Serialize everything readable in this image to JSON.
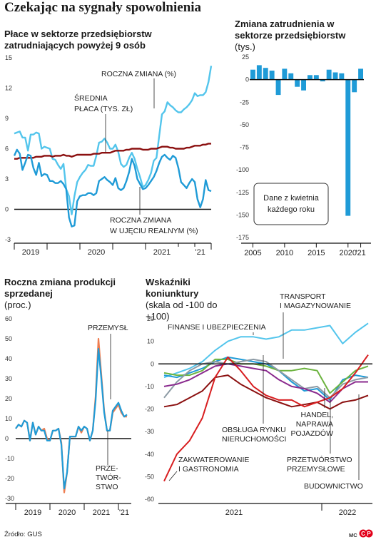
{
  "title": "Czekając na sygnały spowolnienia",
  "source": "Źródło: GUS",
  "credit": "MC",
  "colors": {
    "primary": "#1f9bd7",
    "light": "#53c5ec",
    "dark_red": "#8b1010",
    "red": "#d81e20",
    "green": "#6cb33f",
    "purple": "#8a2a8e",
    "gray": "#8d9ba5",
    "orange": "#ef7d50",
    "navy": "#1d4a7a"
  },
  "chart_data": [
    {
      "id": "wages",
      "type": "line",
      "title": "Płace w sektorze przedsiębiorstw zatrudniających powyżej 9 osób",
      "ylim": [
        -3,
        15
      ],
      "y_ticks": [
        -3,
        0,
        3,
        6,
        9,
        12,
        15
      ],
      "x_labels": [
        "2019",
        "2020",
        "2021",
        "'21"
      ],
      "annotations": [
        "ROCZNA ZMIANA (%)",
        "ŚREDNIA PŁACA (TYS. ZŁ)",
        "ROCZNA ZMIANA W UJĘCIU REALNYM (%)"
      ],
      "series": [
        {
          "name": "ROCZNA ZMIANA (%)",
          "color": "#53c5ec",
          "values": [
            7.5,
            7.6,
            7.7,
            7.1,
            7.1,
            5.8,
            7.4,
            7.4,
            7.6,
            7.5,
            6.0,
            6.2,
            6.1,
            6.0,
            5.0,
            4.9,
            4.4,
            4.0,
            4.5,
            2.0,
            1.3,
            -0.5,
            1.3,
            2.7,
            3.2,
            3.6,
            3.9,
            4.4,
            4.3,
            4.3,
            5.3,
            6.6,
            6.7,
            7.0,
            6.6,
            6.0,
            6.0,
            6.4,
            5.7,
            4.5,
            4.2,
            4.4,
            5.1,
            5.6,
            5.0,
            4.0,
            3.2,
            2.2,
            2.4,
            2.9,
            3.6,
            4.8,
            5.1,
            7.3,
            9.4,
            9.7,
            10.6,
            10.3,
            10.1,
            9.8,
            9.6,
            9.6,
            9.9,
            10.1,
            10.4,
            10.8,
            11.5,
            11.2,
            11.3,
            11.3,
            11.6,
            12.6,
            14.2
          ]
        },
        {
          "name": "ŚREDNIA PŁACA (TYS. ZŁ)",
          "color": "#8b1010",
          "values": [
            5.0,
            5.0,
            5.1,
            5.1,
            5.1,
            5.1,
            5.1,
            5.1,
            5.2,
            5.2,
            5.2,
            5.3,
            5.3,
            5.3,
            5.2,
            5.3,
            5.3,
            5.3,
            5.4,
            5.3,
            5.3,
            5.2,
            5.3,
            5.4,
            5.4,
            5.4,
            5.4,
            5.4,
            5.4,
            5.5,
            5.5,
            5.5,
            5.6,
            5.6,
            5.6,
            5.6,
            5.7,
            5.8,
            5.8,
            5.8,
            5.8,
            5.9,
            5.9,
            6.0,
            6.0,
            6.0,
            6.0,
            5.9,
            5.9,
            5.9,
            6.0,
            6.0,
            6.0,
            6.1,
            6.2,
            6.2,
            6.2,
            6.1,
            6.1,
            6.0,
            6.0,
            6.0,
            6.0,
            6.1,
            6.1,
            6.2,
            6.3,
            6.3,
            6.3,
            6.4,
            6.4,
            6.5,
            6.5
          ]
        },
        {
          "name": "ROCZNA ZMIANA W UJĘCIU REALNYM (%)",
          "color": "#1f9bd7",
          "values": [
            5.3,
            5.9,
            5.5,
            3.9,
            4.6,
            5.4,
            5.3,
            4.1,
            3.4,
            4.6,
            3.3,
            3.5,
            3.4,
            2.8,
            2.8,
            2.6,
            2.6,
            2.8,
            2.5,
            2.0,
            -0.8,
            -1.7,
            -1.6,
            0.8,
            1.3,
            1.4,
            1.4,
            1.6,
            1.6,
            1.4,
            1.6,
            2.8,
            3.0,
            3.2,
            2.9,
            2.7,
            2.4,
            3.1,
            2.1,
            1.9,
            2.1,
            2.8,
            3.7,
            5.0,
            4.3,
            3.0,
            2.5,
            2.0,
            2.1,
            2.4,
            2.8,
            3.2,
            3.8,
            4.6,
            5.2,
            5.4,
            5.1,
            4.9,
            5.3,
            5.1,
            4.1,
            2.7,
            2.4,
            2.1,
            2.6,
            3.0,
            2.7,
            1.0,
            0.2,
            1.0,
            2.9,
            1.9,
            1.8
          ]
        }
      ]
    },
    {
      "id": "employment",
      "type": "bar",
      "title": "Zmiana zatrudnienia w sektorze przedsiębiorstw",
      "subtitle": "(tys.)",
      "ylim": [
        -175,
        25
      ],
      "y_ticks": [
        25,
        0,
        -25,
        -50,
        -75,
        -100,
        -125,
        -150,
        -175
      ],
      "x_labels": [
        "2005",
        "2010",
        "2015",
        "2020",
        "'21"
      ],
      "note": "Dane z kwietnia każdego roku",
      "categories": [
        2005,
        2006,
        2007,
        2008,
        2009,
        2010,
        2011,
        2012,
        2013,
        2014,
        2015,
        2016,
        2017,
        2018,
        2019,
        2020,
        2021,
        2022
      ],
      "values": [
        11,
        16,
        13,
        10,
        -17,
        12,
        7,
        -8,
        -12,
        5,
        5,
        -2,
        11,
        8,
        7,
        -151,
        -14,
        12
      ]
    },
    {
      "id": "production",
      "type": "line",
      "title": "Roczna zmiana produkcji sprzedanej",
      "subtitle": "(proc.)",
      "ylim": [
        -30,
        60
      ],
      "y_ticks": [
        60,
        50,
        40,
        30,
        20,
        10,
        0,
        -10,
        -20,
        -30
      ],
      "x_labels": [
        "2019",
        "2020",
        "2021",
        "'21"
      ],
      "annotations": [
        "PRZEMYSŁ",
        "PRZE-",
        "TWÓR-",
        "STWO"
      ],
      "series": [
        {
          "name": "PRZEMYSŁ",
          "color": "#1f9bd7",
          "values": [
            5,
            7,
            6,
            9,
            8,
            -1,
            8,
            2,
            6,
            4,
            4,
            -1,
            -1,
            4,
            4,
            5,
            -3,
            -25,
            -17,
            1,
            1,
            1,
            6,
            4,
            6,
            5,
            -1,
            4,
            19,
            45,
            30,
            13,
            4,
            4,
            14,
            16,
            18,
            14,
            11,
            12
          ]
        },
        {
          "name": "PRZE-TWÓR-STWO",
          "color": "#ef7d50",
          "values": [
            5,
            7,
            6,
            9,
            8,
            -1,
            8,
            2,
            6,
            4,
            5,
            0,
            -1,
            4,
            4,
            5,
            -2,
            -27,
            -17,
            1,
            1,
            1,
            6,
            3,
            6,
            5,
            -1,
            4,
            21,
            50,
            32,
            14,
            4,
            4,
            13,
            15,
            17,
            13,
            11,
            11
          ]
        }
      ]
    },
    {
      "id": "business",
      "type": "line",
      "title": "Wskaźniki koniunktury",
      "subtitle": "(skala od -100 do +100)",
      "ylim": [
        -60,
        20
      ],
      "y_ticks": [
        20,
        10,
        0,
        -10,
        -20,
        -30,
        -40,
        -50,
        -60
      ],
      "x_labels": [
        "2021",
        "2022"
      ],
      "annotations": [
        "TRANSPORT I MAGAZYNOWANIE",
        "FINANSE I UBEZPIECZENIA",
        "OBSŁUGA RYNKU NIERUCHOMOŚCI",
        "HANDEL, NAPRAWA POJAZDÓW",
        "ZAKWATEROWANIE I GASTRONOMIA",
        "PRZETWÓRSTWO PRZEMYSŁOWE",
        "BUDOWNICTWO"
      ],
      "series": [
        {
          "name": "FINANSE I UBEZPIECZENIA",
          "color": "#53c5ec",
          "values": [
            -6,
            -4,
            -2,
            1,
            6,
            10,
            12,
            12,
            11,
            12,
            15,
            15,
            16,
            17,
            9,
            14,
            18
          ]
        },
        {
          "name": "TRANSPORT I MAGAZYNOWANIE",
          "color": "#1f9bd7",
          "values": [
            -5,
            -6,
            -4,
            -2,
            1,
            3,
            2,
            1,
            0,
            -3,
            -8,
            -12,
            -11,
            -16,
            -7,
            -5,
            -6
          ]
        },
        {
          "name": "OBSŁUGA RYNKU NIERUCHOMOŚCI",
          "color": "#6cb33f",
          "values": [
            -4,
            -5,
            -5,
            -3,
            2,
            2,
            0,
            0,
            -1,
            -3,
            -3,
            -2,
            -3,
            -13,
            -8,
            -3,
            -1
          ]
        },
        {
          "name": "HANDEL, NAPRAWA POJAZDÓW",
          "color": "#8d9ba5",
          "values": [
            -15,
            -8,
            -3,
            0,
            1,
            0,
            1,
            2,
            1,
            -3,
            -7,
            -11,
            -10,
            -15,
            -9,
            -7,
            -6
          ]
        },
        {
          "name": "PRZETWÓRSTWO PRZEMYSŁOWE",
          "color": "#8a2a8e",
          "values": [
            -10,
            -9,
            -7,
            -4,
            -1,
            0,
            -1,
            -2,
            -3,
            -7,
            -10,
            -11,
            -13,
            -17,
            -11,
            -8,
            -8
          ]
        },
        {
          "name": "BUDOWNICTWO",
          "color": "#8b1010",
          "values": [
            -19,
            -18,
            -15,
            -12,
            -6,
            -5,
            -9,
            -12,
            -15,
            -17,
            -19,
            -18,
            -17,
            -20,
            -17,
            -16,
            -14
          ]
        },
        {
          "name": "ZAKWATEROWANIE I GASTRONOMIA",
          "color": "#d81e20",
          "values": [
            -52,
            -40,
            -34,
            -24,
            -6,
            3,
            -3,
            -10,
            -14,
            -16,
            -16,
            -19,
            -17,
            -15,
            -11,
            -4,
            4
          ]
        }
      ]
    }
  ]
}
